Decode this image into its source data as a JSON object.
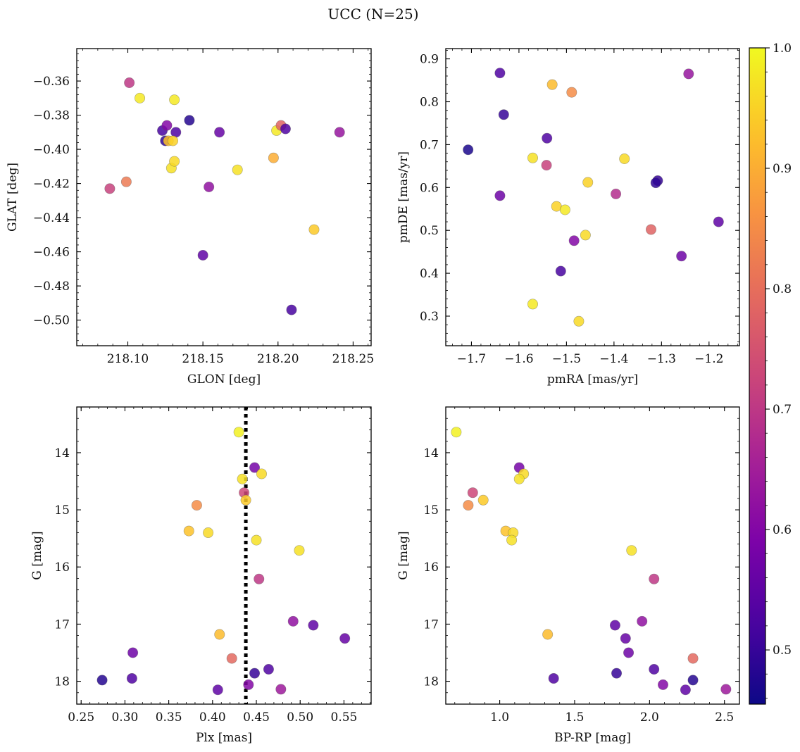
{
  "figure": {
    "suptitle": "UCC (N=25)"
  },
  "colorbar": {
    "cmap": "plasma",
    "vmin": 0.455,
    "vmax": 1.0,
    "ticks": [
      0.5,
      0.6,
      0.7,
      0.8,
      0.9,
      1.0
    ],
    "tick_labels": [
      "0.5",
      "0.6",
      "0.7",
      "0.8",
      "0.9",
      "1.0"
    ]
  },
  "chart_data": [
    {
      "type": "scatter",
      "id": "glon-glat",
      "xlabel": "GLON [deg]",
      "ylabel": "GLAT [deg]",
      "xlim": [
        218.066,
        218.262
      ],
      "ylim": [
        -0.515,
        -0.341
      ],
      "y_inverted": false,
      "xticks": [
        218.1,
        218.15,
        218.2,
        218.25
      ],
      "xtick_labels": [
        "218.10",
        "218.15",
        "218.20",
        "218.25"
      ],
      "yticks": [
        -0.36,
        -0.38,
        -0.4,
        -0.42,
        -0.44,
        -0.46,
        -0.48,
        -0.5
      ],
      "ytick_labels": [
        "−0.36",
        "−0.38",
        "−0.40",
        "−0.42",
        "−0.44",
        "−0.46",
        "−0.48",
        "−0.50"
      ],
      "points": [
        {
          "x": 218.101,
          "y": -0.361,
          "c": 0.7
        },
        {
          "x": 218.108,
          "y": -0.37,
          "c": 0.98
        },
        {
          "x": 218.131,
          "y": -0.371,
          "c": 0.98
        },
        {
          "x": 218.141,
          "y": -0.383,
          "c": 0.48
        },
        {
          "x": 218.123,
          "y": -0.389,
          "c": 0.52
        },
        {
          "x": 218.126,
          "y": -0.386,
          "c": 0.6
        },
        {
          "x": 218.132,
          "y": -0.39,
          "c": 0.53
        },
        {
          "x": 218.125,
          "y": -0.395,
          "c": 0.49
        },
        {
          "x": 218.127,
          "y": -0.395,
          "c": 0.93
        },
        {
          "x": 218.161,
          "y": -0.39,
          "c": 0.56
        },
        {
          "x": 218.129,
          "y": -0.411,
          "c": 0.97
        },
        {
          "x": 218.131,
          "y": -0.407,
          "c": 0.96
        },
        {
          "x": 218.154,
          "y": -0.422,
          "c": 0.62
        },
        {
          "x": 218.15,
          "y": -0.462,
          "c": 0.55
        },
        {
          "x": 218.088,
          "y": -0.423,
          "c": 0.72
        },
        {
          "x": 218.099,
          "y": -0.419,
          "c": 0.82
        },
        {
          "x": 218.173,
          "y": -0.412,
          "c": 0.97
        },
        {
          "x": 218.197,
          "y": -0.405,
          "c": 0.9
        },
        {
          "x": 218.199,
          "y": -0.389,
          "c": 0.98
        },
        {
          "x": 218.202,
          "y": -0.386,
          "c": 0.78
        },
        {
          "x": 218.205,
          "y": -0.388,
          "c": 0.53
        },
        {
          "x": 218.209,
          "y": -0.494,
          "c": 0.52
        },
        {
          "x": 218.224,
          "y": -0.447,
          "c": 0.94
        },
        {
          "x": 218.241,
          "y": -0.39,
          "c": 0.63
        },
        {
          "x": 218.13,
          "y": -0.395,
          "c": 0.95
        }
      ]
    },
    {
      "type": "scatter",
      "id": "pmra-pmde",
      "xlabel": "pmRA [mas/yr]",
      "ylabel": "pmDE [mas/yr]",
      "xlim": [
        -1.754,
        -1.136
      ],
      "ylim": [
        0.231,
        0.924
      ],
      "y_inverted": false,
      "xticks": [
        -1.7,
        -1.6,
        -1.5,
        -1.4,
        -1.3,
        -1.2
      ],
      "xtick_labels": [
        "−1.7",
        "−1.6",
        "−1.5",
        "−1.4",
        "−1.3",
        "−1.2"
      ],
      "yticks": [
        0.3,
        0.4,
        0.5,
        0.6,
        0.7,
        0.8,
        0.9
      ],
      "ytick_labels": [
        "0.3",
        "0.4",
        "0.5",
        "0.6",
        "0.7",
        "0.8",
        "0.9"
      ],
      "points": [
        {
          "x": -1.64,
          "y": 0.867,
          "c": 0.53
        },
        {
          "x": -1.243,
          "y": 0.865,
          "c": 0.63
        },
        {
          "x": -1.53,
          "y": 0.84,
          "c": 0.92
        },
        {
          "x": -1.489,
          "y": 0.822,
          "c": 0.85
        },
        {
          "x": -1.632,
          "y": 0.77,
          "c": 0.5
        },
        {
          "x": -1.541,
          "y": 0.715,
          "c": 0.53
        },
        {
          "x": -1.707,
          "y": 0.688,
          "c": 0.47
        },
        {
          "x": -1.571,
          "y": 0.669,
          "c": 0.97
        },
        {
          "x": -1.378,
          "y": 0.667,
          "c": 0.96
        },
        {
          "x": -1.542,
          "y": 0.652,
          "c": 0.72
        },
        {
          "x": -1.308,
          "y": 0.616,
          "c": 0.5
        },
        {
          "x": -1.312,
          "y": 0.611,
          "c": 0.49
        },
        {
          "x": -1.455,
          "y": 0.612,
          "c": 0.95
        },
        {
          "x": -1.64,
          "y": 0.581,
          "c": 0.57
        },
        {
          "x": -1.396,
          "y": 0.585,
          "c": 0.68
        },
        {
          "x": -1.521,
          "y": 0.556,
          "c": 0.95
        },
        {
          "x": -1.503,
          "y": 0.548,
          "c": 0.98
        },
        {
          "x": -1.18,
          "y": 0.52,
          "c": 0.55
        },
        {
          "x": -1.322,
          "y": 0.502,
          "c": 0.78
        },
        {
          "x": -1.46,
          "y": 0.489,
          "c": 0.96
        },
        {
          "x": -1.484,
          "y": 0.476,
          "c": 0.6
        },
        {
          "x": -1.258,
          "y": 0.44,
          "c": 0.57
        },
        {
          "x": -1.512,
          "y": 0.405,
          "c": 0.52
        },
        {
          "x": -1.571,
          "y": 0.328,
          "c": 0.98
        },
        {
          "x": -1.474,
          "y": 0.288,
          "c": 0.96
        }
      ]
    },
    {
      "type": "scatter",
      "id": "plx-g",
      "xlabel": "Plx [mas]",
      "ylabel": "G [mag]",
      "xlim": [
        0.245,
        0.581
      ],
      "ylim": [
        18.4,
        13.2
      ],
      "y_inverted": true,
      "xticks": [
        0.25,
        0.3,
        0.35,
        0.4,
        0.45,
        0.5,
        0.55
      ],
      "xtick_labels": [
        "0.25",
        "0.30",
        "0.35",
        "0.40",
        "0.45",
        "0.50",
        "0.55"
      ],
      "yticks": [
        14,
        15,
        16,
        17,
        18
      ],
      "ytick_labels": [
        "14",
        "15",
        "16",
        "17",
        "18"
      ],
      "vline": {
        "x": 0.438,
        "style": "dotted",
        "color": "#000000"
      },
      "points": [
        {
          "x": 0.43,
          "y": 13.64,
          "c": 0.99
        },
        {
          "x": 0.448,
          "y": 14.26,
          "c": 0.58
        },
        {
          "x": 0.456,
          "y": 14.37,
          "c": 0.96
        },
        {
          "x": 0.434,
          "y": 14.46,
          "c": 0.97
        },
        {
          "x": 0.436,
          "y": 14.7,
          "c": 0.73
        },
        {
          "x": 0.438,
          "y": 14.83,
          "c": 0.94
        },
        {
          "x": 0.382,
          "y": 14.92,
          "c": 0.85
        },
        {
          "x": 0.373,
          "y": 15.37,
          "c": 0.93
        },
        {
          "x": 0.395,
          "y": 15.4,
          "c": 0.96
        },
        {
          "x": 0.45,
          "y": 15.53,
          "c": 0.97
        },
        {
          "x": 0.499,
          "y": 15.71,
          "c": 0.97
        },
        {
          "x": 0.453,
          "y": 16.21,
          "c": 0.7
        },
        {
          "x": 0.492,
          "y": 16.95,
          "c": 0.62
        },
        {
          "x": 0.515,
          "y": 17.02,
          "c": 0.55
        },
        {
          "x": 0.408,
          "y": 17.18,
          "c": 0.92
        },
        {
          "x": 0.551,
          "y": 17.25,
          "c": 0.56
        },
        {
          "x": 0.309,
          "y": 17.5,
          "c": 0.57
        },
        {
          "x": 0.422,
          "y": 17.6,
          "c": 0.79
        },
        {
          "x": 0.464,
          "y": 17.79,
          "c": 0.53
        },
        {
          "x": 0.448,
          "y": 17.86,
          "c": 0.5
        },
        {
          "x": 0.274,
          "y": 17.98,
          "c": 0.48
        },
        {
          "x": 0.308,
          "y": 17.95,
          "c": 0.53
        },
        {
          "x": 0.441,
          "y": 18.06,
          "c": 0.6
        },
        {
          "x": 0.406,
          "y": 18.15,
          "c": 0.55
        },
        {
          "x": 0.478,
          "y": 18.14,
          "c": 0.64
        }
      ]
    },
    {
      "type": "scatter",
      "id": "bprp-g",
      "xlabel": "BP-RP [mag]",
      "ylabel": "G [mag]",
      "xlim": [
        0.64,
        2.6
      ],
      "ylim": [
        18.4,
        13.2
      ],
      "y_inverted": true,
      "xticks": [
        1.0,
        1.5,
        2.0,
        2.5
      ],
      "xtick_labels": [
        "1.0",
        "1.5",
        "2.0",
        "2.5"
      ],
      "yticks": [
        14,
        15,
        16,
        17,
        18
      ],
      "ytick_labels": [
        "14",
        "15",
        "16",
        "17",
        "18"
      ],
      "points": [
        {
          "x": 0.71,
          "y": 13.64,
          "c": 0.99
        },
        {
          "x": 1.13,
          "y": 14.26,
          "c": 0.58
        },
        {
          "x": 1.16,
          "y": 14.37,
          "c": 0.96
        },
        {
          "x": 1.13,
          "y": 14.46,
          "c": 0.97
        },
        {
          "x": 0.82,
          "y": 14.7,
          "c": 0.73
        },
        {
          "x": 0.89,
          "y": 14.83,
          "c": 0.94
        },
        {
          "x": 0.79,
          "y": 14.92,
          "c": 0.85
        },
        {
          "x": 1.04,
          "y": 15.37,
          "c": 0.93
        },
        {
          "x": 1.09,
          "y": 15.4,
          "c": 0.96
        },
        {
          "x": 1.08,
          "y": 15.53,
          "c": 0.97
        },
        {
          "x": 1.88,
          "y": 15.71,
          "c": 0.97
        },
        {
          "x": 2.03,
          "y": 16.21,
          "c": 0.7
        },
        {
          "x": 1.95,
          "y": 16.95,
          "c": 0.62
        },
        {
          "x": 1.77,
          "y": 17.02,
          "c": 0.55
        },
        {
          "x": 1.32,
          "y": 17.18,
          "c": 0.92
        },
        {
          "x": 1.84,
          "y": 17.25,
          "c": 0.56
        },
        {
          "x": 1.86,
          "y": 17.5,
          "c": 0.57
        },
        {
          "x": 2.29,
          "y": 17.6,
          "c": 0.79
        },
        {
          "x": 2.03,
          "y": 17.79,
          "c": 0.53
        },
        {
          "x": 1.78,
          "y": 17.86,
          "c": 0.5
        },
        {
          "x": 2.29,
          "y": 17.98,
          "c": 0.48
        },
        {
          "x": 1.36,
          "y": 17.95,
          "c": 0.53
        },
        {
          "x": 2.09,
          "y": 18.06,
          "c": 0.6
        },
        {
          "x": 2.24,
          "y": 18.15,
          "c": 0.55
        },
        {
          "x": 2.51,
          "y": 18.14,
          "c": 0.64
        }
      ]
    }
  ]
}
